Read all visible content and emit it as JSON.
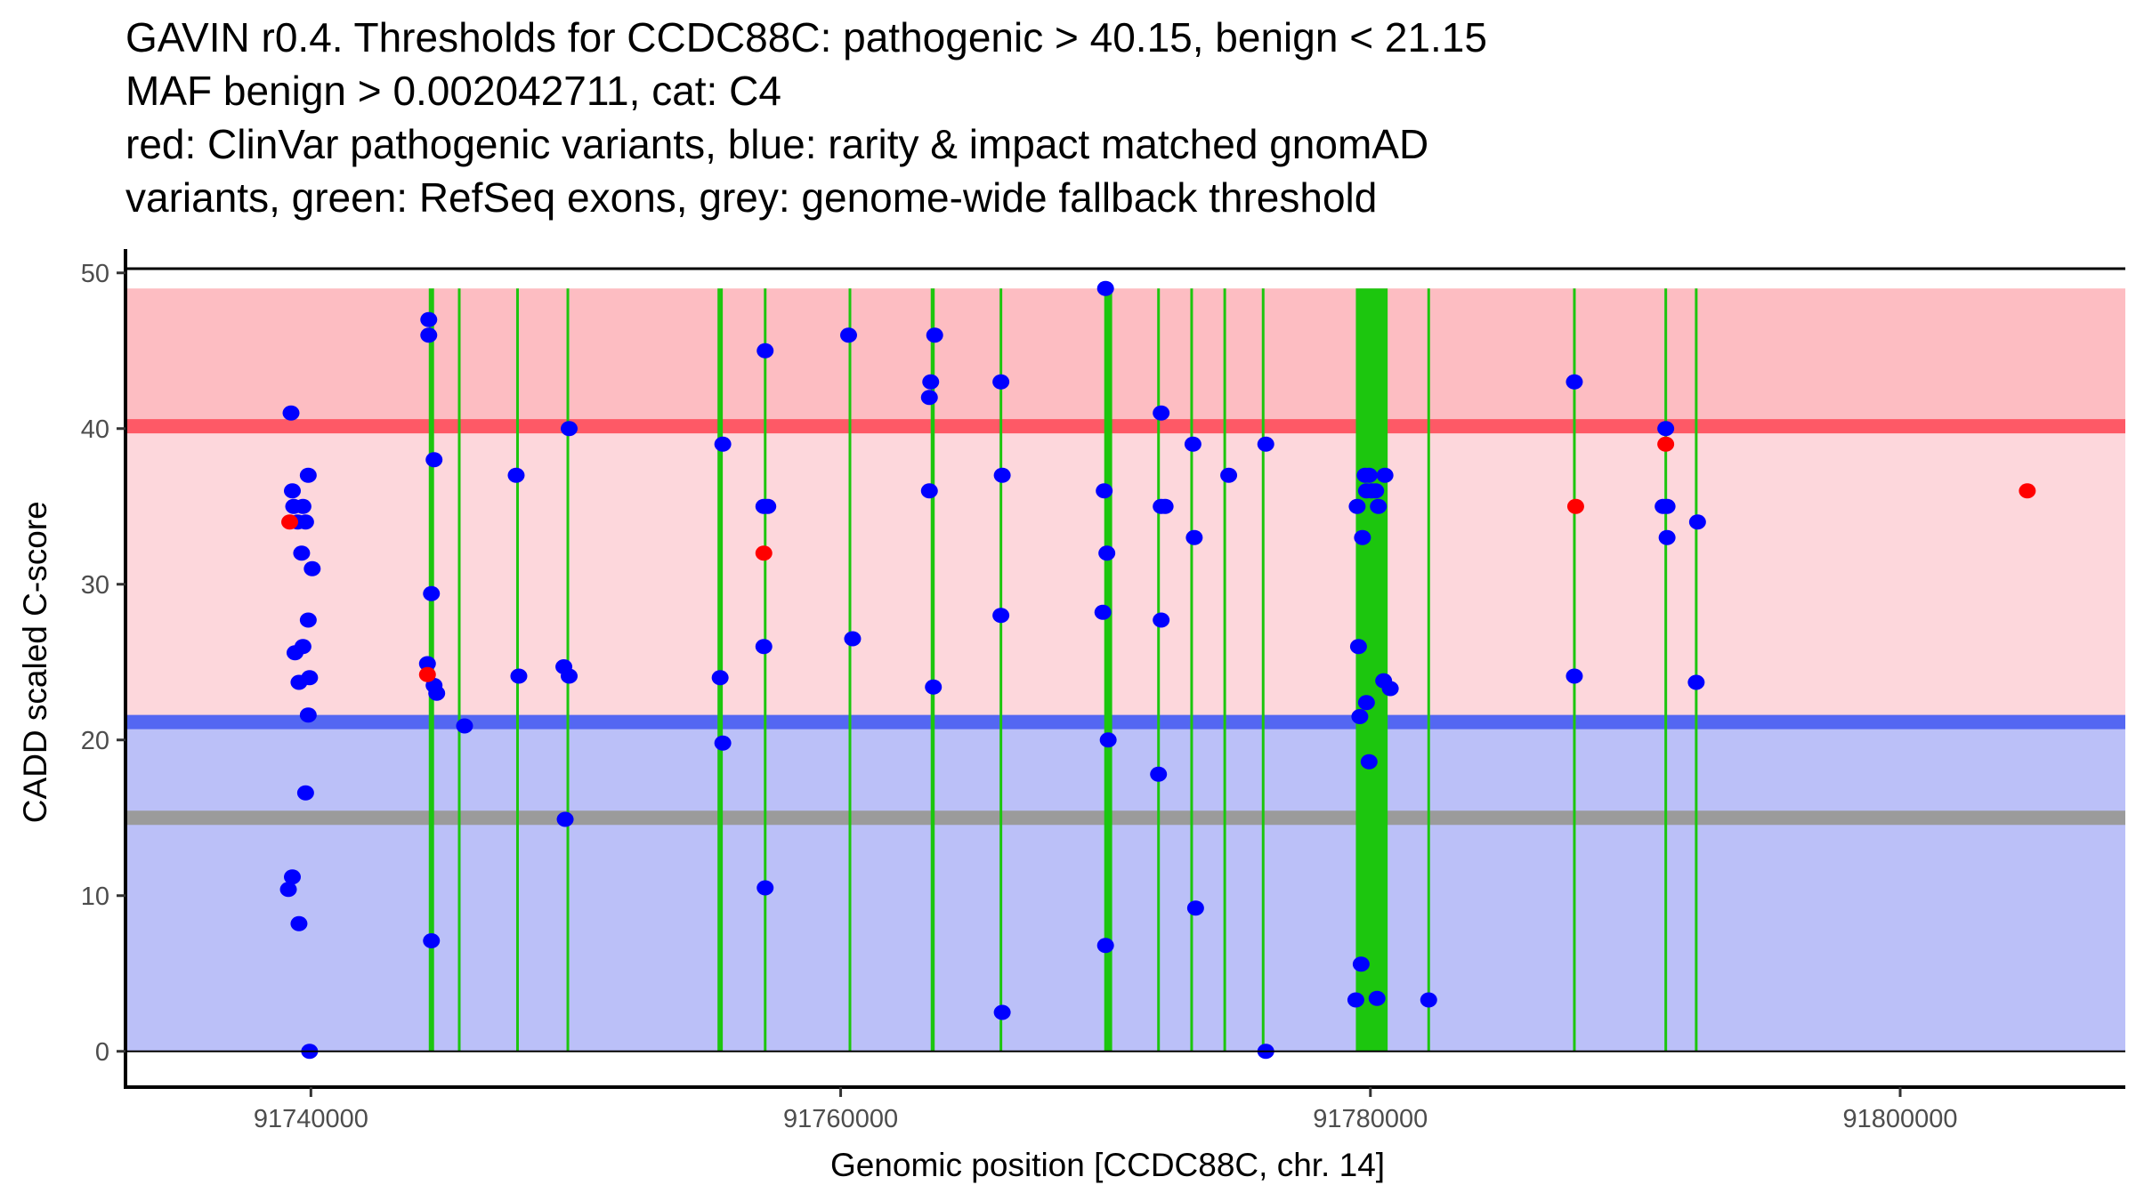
{
  "chart_data": {
    "type": "scatter",
    "title_lines": [
      "GAVIN r0.4. Thresholds for CCDC88C: pathogenic > 40.15, benign < 21.15",
      "MAF benign > 0.002042711, cat: C4",
      "red: ClinVar pathogenic variants, blue: rarity & impact matched gnomAD",
      "variants, green: RefSeq exons, grey: genome-wide fallback threshold"
    ],
    "xlabel": "Genomic position [CCDC88C, chr. 14]",
    "ylabel": "CADD scaled C-score",
    "xlim": [
      91733000,
      91808500
    ],
    "ylim": [
      -2.3,
      51.3
    ],
    "x_ticks": [
      91740000,
      91760000,
      91780000,
      91800000
    ],
    "x_tick_labels": [
      "91740000",
      "91760000",
      "91780000",
      "91800000"
    ],
    "y_ticks": [
      0,
      10,
      20,
      30,
      40,
      50
    ],
    "y_tick_labels": [
      "0",
      "10",
      "20",
      "30",
      "40",
      "50"
    ],
    "grid": false,
    "bands": [
      {
        "name": "pathogenic-region",
        "ymin": 40.15,
        "ymax": 49,
        "color": "#fdbdc2"
      },
      {
        "name": "vus-region",
        "ymin": 21.15,
        "ymax": 40.15,
        "color": "#fdd7dc"
      },
      {
        "name": "benign-region",
        "ymin": 0,
        "ymax": 21.15,
        "color": "#bbc0f8"
      }
    ],
    "threshold_lines": [
      {
        "name": "pathogenic-threshold",
        "y": 40.15,
        "color": "#fe5966"
      },
      {
        "name": "benign-threshold",
        "y": 21.15,
        "color": "#5467f2"
      },
      {
        "name": "fallback-threshold",
        "y": 15.0,
        "color": "#9b9b9b"
      }
    ],
    "exons": [
      {
        "start": 91744450,
        "end": 91744650
      },
      {
        "start": 91745550,
        "end": 91745600
      },
      {
        "start": 91747750,
        "end": 91747800
      },
      {
        "start": 91749650,
        "end": 91749750
      },
      {
        "start": 91755350,
        "end": 91755550
      },
      {
        "start": 91757100,
        "end": 91757150
      },
      {
        "start": 91760300,
        "end": 91760400
      },
      {
        "start": 91763400,
        "end": 91763550
      },
      {
        "start": 91766000,
        "end": 91766100
      },
      {
        "start": 91769950,
        "end": 91770250
      },
      {
        "start": 91771950,
        "end": 91772050
      },
      {
        "start": 91773200,
        "end": 91773300
      },
      {
        "start": 91774450,
        "end": 91774550
      },
      {
        "start": 91775900,
        "end": 91775950
      },
      {
        "start": 91779450,
        "end": 91780650
      },
      {
        "start": 91782150,
        "end": 91782250
      },
      {
        "start": 91787650,
        "end": 91787750
      },
      {
        "start": 91791100,
        "end": 91791200
      },
      {
        "start": 91792250,
        "end": 91792300
      }
    ],
    "series": [
      {
        "name": "gnomAD matched variants",
        "color": "#0000ff",
        "points": [
          [
            91739250,
            41
          ],
          [
            91739300,
            36
          ],
          [
            91739350,
            35
          ],
          [
            91739500,
            34
          ],
          [
            91739800,
            34
          ],
          [
            91739700,
            35
          ],
          [
            91739900,
            37
          ],
          [
            91739650,
            32
          ],
          [
            91740050,
            31
          ],
          [
            91739900,
            27.7
          ],
          [
            91739400,
            25.6
          ],
          [
            91739700,
            26
          ],
          [
            91739550,
            23.7
          ],
          [
            91739950,
            24
          ],
          [
            91739900,
            21.6
          ],
          [
            91739800,
            16.6
          ],
          [
            91739300,
            11.2
          ],
          [
            91739150,
            10.4
          ],
          [
            91739550,
            8.2
          ],
          [
            91739950,
            0
          ],
          [
            91744450,
            47
          ],
          [
            91744450,
            46
          ],
          [
            91744650,
            38
          ],
          [
            91744550,
            29.4
          ],
          [
            91744400,
            24.9
          ],
          [
            91744650,
            23.5
          ],
          [
            91744750,
            23
          ],
          [
            91744550,
            7.1
          ],
          [
            91745800,
            20.9
          ],
          [
            91747750,
            37
          ],
          [
            91747850,
            24.1
          ],
          [
            91749750,
            40
          ],
          [
            91749550,
            24.7
          ],
          [
            91749750,
            24.1
          ],
          [
            91749600,
            14.9
          ],
          [
            91755450,
            24
          ],
          [
            91755550,
            39
          ],
          [
            91755550,
            19.8
          ],
          [
            91757150,
            45
          ],
          [
            91757100,
            35
          ],
          [
            91757250,
            35
          ],
          [
            91757100,
            26
          ],
          [
            91757150,
            10.5
          ],
          [
            91760300,
            46
          ],
          [
            91760450,
            26.5
          ],
          [
            91763400,
            43
          ],
          [
            91763550,
            46
          ],
          [
            91763350,
            42
          ],
          [
            91763350,
            36
          ],
          [
            91763500,
            23.4
          ],
          [
            91766050,
            43
          ],
          [
            91766100,
            37
          ],
          [
            91766050,
            28
          ],
          [
            91766100,
            2.5
          ],
          [
            91770000,
            49
          ],
          [
            91769950,
            36
          ],
          [
            91770050,
            32
          ],
          [
            91769900,
            28.2
          ],
          [
            91770100,
            20
          ],
          [
            91770000,
            6.8
          ],
          [
            91772100,
            41
          ],
          [
            91772100,
            35
          ],
          [
            91772250,
            35
          ],
          [
            91772100,
            27.7
          ],
          [
            91772000,
            17.8
          ],
          [
            91773300,
            39
          ],
          [
            91773350,
            33
          ],
          [
            91773400,
            9.2
          ],
          [
            91774650,
            37
          ],
          [
            91776050,
            39
          ],
          [
            91776050,
            0
          ],
          [
            91779500,
            35
          ],
          [
            91779800,
            37
          ],
          [
            91779950,
            37
          ],
          [
            91779850,
            36
          ],
          [
            91780200,
            36
          ],
          [
            91780050,
            36
          ],
          [
            91780550,
            37
          ],
          [
            91780300,
            35
          ],
          [
            91779700,
            33
          ],
          [
            91779550,
            26
          ],
          [
            91779850,
            22.4
          ],
          [
            91779600,
            21.5
          ],
          [
            91780500,
            23.8
          ],
          [
            91780750,
            23.3
          ],
          [
            91779950,
            18.6
          ],
          [
            91779650,
            5.6
          ],
          [
            91779450,
            3.3
          ],
          [
            91780250,
            3.4
          ],
          [
            91782200,
            3.3
          ],
          [
            91787700,
            43
          ],
          [
            91787700,
            24.1
          ],
          [
            91791150,
            40
          ],
          [
            91791050,
            35
          ],
          [
            91791200,
            35
          ],
          [
            91791200,
            33
          ],
          [
            91792350,
            34
          ],
          [
            91792300,
            23.7
          ]
        ]
      },
      {
        "name": "ClinVar pathogenic variants",
        "color": "#ff0000",
        "points": [
          [
            91739200,
            34
          ],
          [
            91744400,
            24.2
          ],
          [
            91757100,
            32
          ],
          [
            91787750,
            35
          ],
          [
            91791150,
            39
          ],
          [
            91804800,
            36
          ]
        ]
      }
    ]
  }
}
